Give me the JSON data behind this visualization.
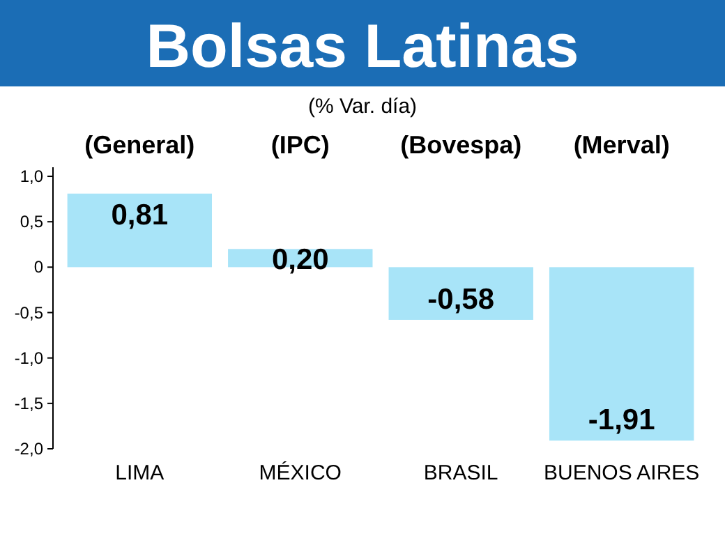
{
  "chart_data": {
    "type": "bar",
    "title": "Bolsas Latinas",
    "subtitle": "(% Var. día)",
    "categories": [
      "LIMA",
      "MÉXICO",
      "BRASIL",
      "BUENOS AIRES"
    ],
    "values": [
      0.81,
      0.2,
      -0.58,
      -1.91
    ],
    "value_labels": [
      "0,81",
      "0,20",
      "-0,58",
      "-1,91"
    ],
    "color": "#a8e4f8",
    "annotations": [
      "(General)",
      "(IPC)",
      "(Bovespa)",
      "(Merval)"
    ],
    "ylim": [
      -2,
      1.1
    ],
    "yticks": [
      {
        "value": 1,
        "label": "1,0"
      },
      {
        "value": 0.5,
        "label": "0,5"
      },
      {
        "value": 0,
        "label": "0"
      },
      {
        "value": -0.5,
        "label": "-0,5"
      },
      {
        "value": -1,
        "label": "-1,0"
      },
      {
        "value": -1.5,
        "label": "-1,5"
      },
      {
        "value": -2,
        "label": "-2,0"
      }
    ],
    "grid": false
  }
}
